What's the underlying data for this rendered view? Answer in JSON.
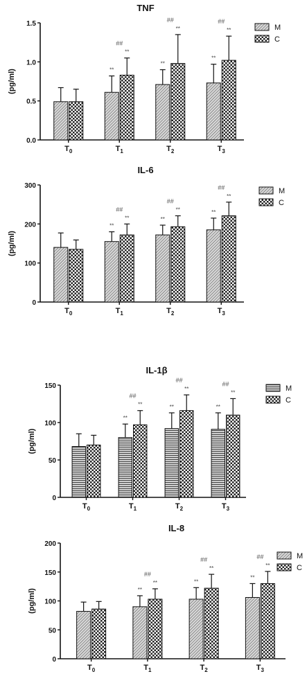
{
  "colors": {
    "ink": "#111111",
    "bar_m": "#bdbdbd",
    "bar_c": "#ffffff"
  },
  "chart_data": [
    {
      "type": "bar",
      "title": "TNF",
      "ylabel": "(pg/ml)",
      "xlabel": "",
      "categories": [
        {
          "base": "T",
          "sub": "0"
        },
        {
          "base": "T",
          "sub": "1"
        },
        {
          "base": "T",
          "sub": "2"
        },
        {
          "base": "T",
          "sub": "3"
        }
      ],
      "ylim": [
        0,
        1.5
      ],
      "yticks": [
        0,
        0.5,
        1.0,
        1.5
      ],
      "ytick_labels": [
        "0.0",
        "0.5",
        "1.0",
        "1.5"
      ],
      "grid": false,
      "legend_position": "right",
      "pattern_style": "diag",
      "series": [
        {
          "name": "M",
          "values": [
            0.49,
            0.61,
            0.71,
            0.73
          ],
          "errors": [
            0.18,
            0.21,
            0.19,
            0.24
          ],
          "annotations": [
            "",
            "**",
            "**",
            "**"
          ]
        },
        {
          "name": "C",
          "values": [
            0.49,
            0.83,
            0.98,
            1.02
          ],
          "errors": [
            0.16,
            0.22,
            0.37,
            0.31
          ],
          "annotations": [
            "",
            "**",
            "**",
            "**"
          ]
        }
      ],
      "group_annotations": [
        "",
        "##",
        "##",
        "##"
      ]
    },
    {
      "type": "bar",
      "title": "IL-6",
      "ylabel": "(pg/ml)",
      "xlabel": "",
      "categories": [
        {
          "base": "T",
          "sub": "0"
        },
        {
          "base": "T",
          "sub": "1"
        },
        {
          "base": "T",
          "sub": "2"
        },
        {
          "base": "T",
          "sub": "3"
        }
      ],
      "ylim": [
        0,
        300
      ],
      "yticks": [
        0,
        100,
        200,
        300
      ],
      "ytick_labels": [
        "0",
        "100",
        "200",
        "300"
      ],
      "grid": false,
      "legend_position": "right",
      "pattern_style": "diag",
      "series": [
        {
          "name": "M",
          "values": [
            140,
            155,
            172,
            185
          ],
          "errors": [
            37,
            25,
            25,
            30
          ],
          "annotations": [
            "",
            "**",
            "**",
            "**"
          ]
        },
        {
          "name": "C",
          "values": [
            135,
            172,
            193,
            221
          ],
          "errors": [
            24,
            28,
            28,
            35
          ],
          "annotations": [
            "",
            "**",
            "**",
            "**"
          ]
        }
      ],
      "group_annotations": [
        "",
        "##",
        "##",
        "##"
      ]
    },
    {
      "type": "bar",
      "title": "IL-1β",
      "ylabel": "(pg/ml)",
      "xlabel": "",
      "categories": [
        {
          "base": "T",
          "sub": "0"
        },
        {
          "base": "T",
          "sub": "1"
        },
        {
          "base": "T",
          "sub": "2"
        },
        {
          "base": "T",
          "sub": "3"
        }
      ],
      "ylim": [
        0,
        150
      ],
      "yticks": [
        0,
        50,
        100,
        150
      ],
      "ytick_labels": [
        "0",
        "50",
        "100",
        "150"
      ],
      "grid": false,
      "legend_position": "right",
      "pattern_style": "horiz",
      "series": [
        {
          "name": "M",
          "values": [
            68,
            80,
            92,
            91
          ],
          "errors": [
            17,
            18,
            21,
            22
          ],
          "annotations": [
            "",
            "**",
            "**",
            "**"
          ]
        },
        {
          "name": "C",
          "values": [
            70,
            97,
            116,
            110
          ],
          "errors": [
            13,
            19,
            21,
            22
          ],
          "annotations": [
            "",
            "**",
            "**",
            "**"
          ]
        }
      ],
      "group_annotations": [
        "",
        "##",
        "##",
        "##"
      ]
    },
    {
      "type": "bar",
      "title": "IL-8",
      "ylabel": "(pg/ml)",
      "xlabel": "",
      "categories": [
        {
          "base": "T",
          "sub": "0"
        },
        {
          "base": "T",
          "sub": "1"
        },
        {
          "base": "T",
          "sub": "2"
        },
        {
          "base": "T",
          "sub": "3"
        }
      ],
      "ylim": [
        0,
        200
      ],
      "yticks": [
        0,
        50,
        100,
        150,
        200
      ],
      "ytick_labels": [
        "0",
        "50",
        "100",
        "150",
        "200"
      ],
      "grid": false,
      "legend_position": "right",
      "pattern_style": "diag",
      "series": [
        {
          "name": "M",
          "values": [
            82,
            90,
            103,
            106
          ],
          "errors": [
            16,
            19,
            20,
            24
          ],
          "annotations": [
            "",
            "**",
            "**",
            "**"
          ]
        },
        {
          "name": "C",
          "values": [
            86,
            103,
            122,
            130
          ],
          "errors": [
            13,
            18,
            24,
            21
          ],
          "annotations": [
            "",
            "**",
            "**",
            "**"
          ]
        }
      ],
      "group_annotations": [
        "",
        "##",
        "##",
        "##"
      ]
    }
  ]
}
